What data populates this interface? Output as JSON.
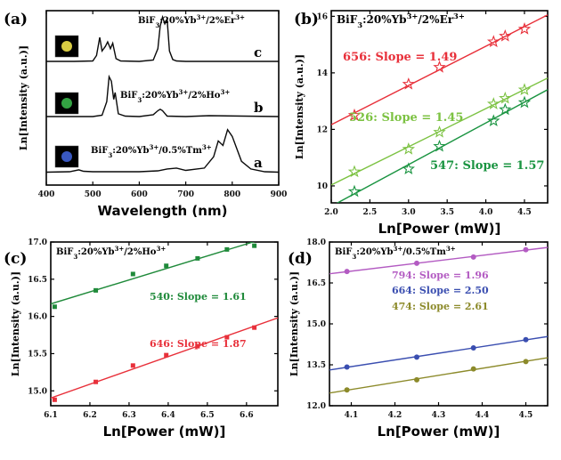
{
  "chart_data": [
    {
      "panel": "(a)",
      "type": "line",
      "xlabel": "Wavelength (nm)",
      "ylabel": "Ln[Intensity (a.u.)]",
      "xlim": [
        400,
        900
      ],
      "xticks": [
        "400",
        "500",
        "600",
        "700",
        "800",
        "900"
      ],
      "series": [
        {
          "name": "BiF3:20%Yb3+/2%Er3+",
          "letter": "c",
          "color": "#0a0a0a",
          "offset": 2.0,
          "x": [
            400,
            460,
            500,
            508,
            515,
            520,
            527,
            532,
            538,
            543,
            550,
            560,
            600,
            630,
            640,
            645,
            650,
            655,
            660,
            665,
            672,
            680,
            700,
            800,
            830,
            900
          ],
          "y": [
            0.02,
            0.02,
            0.03,
            0.15,
            0.55,
            0.25,
            0.35,
            0.45,
            0.3,
            0.42,
            0.08,
            0.03,
            0.02,
            0.05,
            0.3,
            0.8,
            1.0,
            0.85,
            0.95,
            0.25,
            0.06,
            0.03,
            0.02,
            0.02,
            0.02,
            0.02
          ]
        },
        {
          "name": "BiF3:20%Yb3+/2%Ho3+",
          "letter": "b",
          "color": "#0a0a0a",
          "offset": 1.0,
          "x": [
            400,
            500,
            520,
            530,
            535,
            540,
            545,
            548,
            555,
            570,
            600,
            630,
            640,
            645,
            650,
            660,
            700,
            750,
            900
          ],
          "y": [
            0.02,
            0.02,
            0.05,
            0.35,
            0.9,
            0.8,
            0.4,
            0.55,
            0.08,
            0.03,
            0.02,
            0.06,
            0.15,
            0.18,
            0.15,
            0.03,
            0.02,
            0.04,
            0.02
          ]
        },
        {
          "name": "BiF3:20%Yb3+/0.5%Tm3+",
          "letter": "a",
          "color": "#0a0a0a",
          "offset": 0.0,
          "x": [
            400,
            450,
            470,
            480,
            500,
            600,
            640,
            660,
            680,
            700,
            740,
            760,
            770,
            780,
            790,
            800,
            820,
            840,
            870,
            900
          ],
          "y": [
            0.01,
            0.02,
            0.06,
            0.03,
            0.02,
            0.02,
            0.04,
            0.08,
            0.1,
            0.05,
            0.1,
            0.35,
            0.7,
            0.6,
            0.95,
            0.8,
            0.25,
            0.08,
            0.02,
            0.01
          ]
        }
      ]
    },
    {
      "panel": "(b)",
      "type": "scatter",
      "title": "BiF3:20%Yb3+/2%Er3+",
      "xlabel": "Ln[Power (mW)]",
      "ylabel": "Ln[Intensity (a.u.)]",
      "xlim": [
        2.0,
        4.8
      ],
      "ylim": [
        9.4,
        16.2
      ],
      "xticks": [
        "2.0",
        "2.5",
        "3.0",
        "3.5",
        "4.0",
        "4.5"
      ],
      "yticks": [
        "10",
        "12",
        "14",
        "16"
      ],
      "series": [
        {
          "name": "656",
          "label": "656: Slope = 1.49",
          "color": "#e8303a",
          "x": [
            2.3,
            3.0,
            3.4,
            4.1,
            4.25,
            4.5
          ],
          "y": [
            12.5,
            13.6,
            14.2,
            15.1,
            15.3,
            15.55
          ],
          "slope": 1.49
        },
        {
          "name": "526",
          "label": "526: Slope = 1.45",
          "color": "#7cc242",
          "x": [
            2.3,
            3.0,
            3.4,
            4.1,
            4.25,
            4.5
          ],
          "y": [
            10.5,
            11.3,
            11.9,
            12.9,
            13.1,
            13.4
          ],
          "slope": 1.45
        },
        {
          "name": "547",
          "label": "547: Slope = 1.57",
          "color": "#1a9441",
          "x": [
            2.3,
            3.0,
            3.4,
            4.1,
            4.25,
            4.5
          ],
          "y": [
            9.8,
            10.6,
            11.4,
            12.3,
            12.7,
            12.95
          ],
          "slope": 1.57
        }
      ]
    },
    {
      "panel": "(c)",
      "type": "scatter",
      "title": "BiF3:20%Yb3+/2%Ho3+",
      "xlabel": "Ln[Power (mW)]",
      "ylabel": "Ln[Intensity (a.u.)]",
      "xlim": [
        6.1,
        6.68
      ],
      "ylim": [
        14.8,
        17.0
      ],
      "xticks": [
        "6.1",
        "6.2",
        "6.3",
        "6.4",
        "6.5",
        "6.6"
      ],
      "yticks": [
        "15.0",
        "15.5",
        "16.0",
        "16.5",
        "17.0"
      ],
      "series": [
        {
          "name": "540",
          "label": "540: Slope = 1.61",
          "color": "#1f8a3a",
          "x": [
            6.11,
            6.215,
            6.31,
            6.395,
            6.475,
            6.55,
            6.62
          ],
          "y": [
            16.13,
            16.35,
            16.57,
            16.68,
            16.78,
            16.9,
            16.95
          ],
          "slope": 1.61
        },
        {
          "name": "646",
          "label": "646: Slope = 1.87",
          "color": "#e8303a",
          "x": [
            6.11,
            6.215,
            6.31,
            6.395,
            6.475,
            6.55,
            6.62
          ],
          "y": [
            14.88,
            15.12,
            15.34,
            15.48,
            15.6,
            15.72,
            15.85
          ],
          "slope": 1.87
        }
      ]
    },
    {
      "panel": "(d)",
      "type": "scatter",
      "title": "BiF3:20%Yb3+/0.5%Tm3+",
      "xlabel": "Ln[Power (mW)]",
      "ylabel": "Ln[Intensity (a.u.)]",
      "xlim": [
        4.05,
        4.55
      ],
      "ylim": [
        12.0,
        18.0
      ],
      "xticks": [
        "4.1",
        "4.2",
        "4.3",
        "4.4",
        "4.5"
      ],
      "yticks": [
        "12.0",
        "13.5",
        "15.0",
        "16.5",
        "18.0"
      ],
      "series": [
        {
          "name": "794",
          "label": "794: Slope = 1.96",
          "color": "#b35bc2",
          "x": [
            4.09,
            4.25,
            4.38,
            4.5
          ],
          "y": [
            16.92,
            17.22,
            17.45,
            17.72
          ],
          "slope": 1.96
        },
        {
          "name": "664",
          "label": "664: Slope = 2.50",
          "color": "#3a4eb0",
          "x": [
            4.09,
            4.25,
            4.38,
            4.5
          ],
          "y": [
            13.42,
            13.78,
            14.12,
            14.42
          ],
          "slope": 2.5
        },
        {
          "name": "474",
          "label": "474: Slope = 2.61",
          "color": "#8c8a2a",
          "x": [
            4.09,
            4.25,
            4.38,
            4.5
          ],
          "y": [
            12.58,
            12.95,
            13.35,
            13.62
          ],
          "slope": 2.61
        }
      ]
    }
  ]
}
